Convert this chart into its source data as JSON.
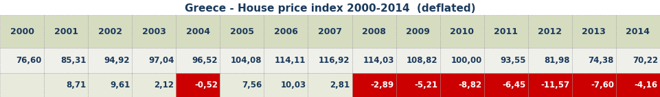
{
  "title": "Greece - House price index 2000-2014  (deflated)",
  "years": [
    "2000",
    "2001",
    "2002",
    "2003",
    "2004",
    "2005",
    "2006",
    "2007",
    "2008",
    "2009",
    "2010",
    "2011",
    "2012",
    "2013",
    "2014"
  ],
  "index_values": [
    "76,60",
    "85,31",
    "94,92",
    "97,04",
    "96,52",
    "104,08",
    "114,11",
    "116,92",
    "114,03",
    "108,82",
    "100,00",
    "93,55",
    "81,98",
    "74,38",
    "70,22"
  ],
  "change_values": [
    "",
    "8,71",
    "9,61",
    "2,12",
    "-0,52",
    "7,56",
    "10,03",
    "2,81",
    "-2,89",
    "-5,21",
    "-8,82",
    "-6,45",
    "-11,57",
    "-7,60",
    "-4,16"
  ],
  "header_bg": "#d6dcc0",
  "index_row_bg": "#f0f0ea",
  "change_row_positive_bg": "#e8ebdc",
  "change_row_negative_bg": "#cc0000",
  "negative_indices": [
    4,
    8,
    9,
    10,
    11,
    12,
    13,
    14
  ],
  "title_fontsize": 11,
  "cell_fontsize": 8.5,
  "year_fontsize": 9,
  "border_color": "#888888",
  "text_color_dark": "#1a3a5c",
  "text_color_light": "#ffffff",
  "outer_bg": "#ffffff"
}
